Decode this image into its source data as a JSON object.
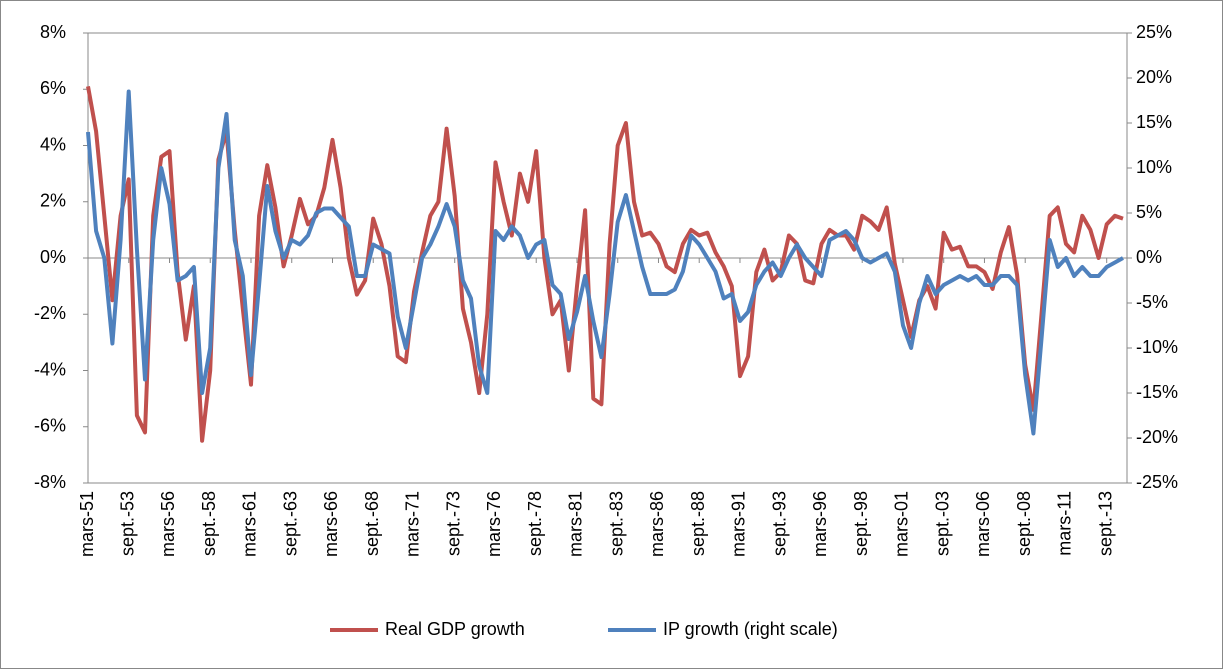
{
  "chart_data": {
    "type": "line",
    "categories": [
      "mars-51",
      null,
      null,
      null,
      null,
      "sept.-53",
      null,
      null,
      null,
      null,
      "mars-56",
      null,
      null,
      null,
      null,
      "sept.-58",
      null,
      null,
      null,
      null,
      "mars-61",
      null,
      null,
      null,
      null,
      "sept.-63",
      null,
      null,
      null,
      null,
      "mars-66",
      null,
      null,
      null,
      null,
      "sept.-68",
      null,
      null,
      null,
      null,
      "mars-71",
      null,
      null,
      null,
      null,
      "sept.-73",
      null,
      null,
      null,
      null,
      "mars-76",
      null,
      null,
      null,
      null,
      "sept.-78",
      null,
      null,
      null,
      null,
      "mars-81",
      null,
      null,
      null,
      null,
      "sept.-83",
      null,
      null,
      null,
      null,
      "mars-86",
      null,
      null,
      null,
      null,
      "sept.-88",
      null,
      null,
      null,
      null,
      "mars-91",
      null,
      null,
      null,
      null,
      "sept.-93",
      null,
      null,
      null,
      null,
      "mars-96",
      null,
      null,
      null,
      null,
      "sept.-98",
      null,
      null,
      null,
      null,
      "mars-01",
      null,
      null,
      null,
      null,
      "sept.-03",
      null,
      null,
      null,
      null,
      "mars-06",
      null,
      null,
      null,
      null,
      "sept.-08",
      null,
      null,
      null,
      null,
      "mars-11",
      null,
      null,
      null,
      null,
      "sept.-13",
      null,
      null
    ],
    "series": [
      {
        "name": "Real GDP growth",
        "color": "#c0504d",
        "values": [
          6.1,
          4.5,
          1.5,
          -1.5,
          1.5,
          2.8,
          -5.6,
          -6.2,
          1.5,
          3.6,
          3.8,
          -0.5,
          -2.9,
          -1.0,
          -6.5,
          -4.0,
          3.5,
          4.5,
          1.0,
          -1.8,
          -4.5,
          1.5,
          3.3,
          1.8,
          -0.3,
          0.8,
          2.1,
          1.2,
          1.5,
          2.5,
          4.2,
          2.5,
          0.0,
          -1.3,
          -0.8,
          1.4,
          0.5,
          -1.0,
          -3.5,
          -3.7,
          -1.2,
          0.2,
          1.5,
          2.0,
          4.6,
          2.2,
          -1.8,
          -3.0,
          -4.8,
          -2.0,
          3.4,
          2.0,
          0.8,
          3.0,
          2.0,
          3.8,
          0.0,
          -2.0,
          -1.5,
          -4.0,
          -1.0,
          1.7,
          -5.0,
          -5.2,
          0.5,
          4.0,
          4.8,
          2.0,
          0.8,
          0.9,
          0.5,
          -0.3,
          -0.5,
          0.5,
          1.0,
          0.8,
          0.9,
          0.2,
          -0.3,
          -1.0,
          -4.2,
          -3.5,
          -0.5,
          0.3,
          -0.8,
          -0.5,
          0.8,
          0.5,
          -0.8,
          -0.9,
          0.5,
          1.0,
          0.8,
          0.8,
          0.3,
          1.5,
          1.3,
          1.0,
          1.8,
          -0.2,
          -1.5,
          -2.8,
          -1.5,
          -1.0,
          -1.8,
          0.9,
          0.3,
          0.4,
          -0.3,
          -0.3,
          -0.5,
          -1.1,
          0.2,
          1.1,
          -0.6,
          -3.8,
          -5.4,
          -2.0,
          1.5,
          1.8,
          0.5,
          0.2,
          1.5,
          1.0,
          0.0,
          1.2,
          1.5,
          1.4
        ]
      },
      {
        "name": "IP growth (right scale)",
        "color": "#4f81bd",
        "axis": "y2",
        "values": [
          14,
          3,
          0,
          -9.5,
          2,
          18.5,
          1,
          -13.5,
          2,
          10,
          6,
          -2.5,
          -2,
          -1,
          -15,
          -10,
          10,
          16,
          2,
          -2,
          -13,
          -3,
          8,
          3,
          0,
          2,
          1.5,
          2.5,
          5,
          5.5,
          5.5,
          4.5,
          3.5,
          -2,
          -2,
          1.5,
          1,
          0.5,
          -6.5,
          -10,
          -5,
          0,
          1.5,
          3.5,
          6,
          3.5,
          -2.5,
          -4.5,
          -12,
          -15,
          3,
          2,
          3.5,
          2.5,
          0,
          1.5,
          2,
          -3,
          -4,
          -9,
          -6,
          -2,
          -7,
          -11,
          -4,
          4,
          7,
          3,
          -1,
          -4,
          -4,
          -4,
          -3.5,
          -1.5,
          2.5,
          1.5,
          0,
          -1.5,
          -4.5,
          -4,
          -7,
          -6,
          -3,
          -1.5,
          -0.5,
          -2,
          0,
          1.5,
          0,
          -1,
          -2,
          2,
          2.5,
          3,
          2,
          0,
          -0.5,
          0,
          0.5,
          -1.5,
          -7.5,
          -10,
          -5,
          -2,
          -4,
          -3,
          -2.5,
          -2,
          -2.5,
          -2,
          -3,
          -3,
          -2,
          -2,
          -3,
          -13,
          -19.5,
          -9,
          2,
          -1,
          0,
          -2,
          -1,
          -2,
          -2,
          -1,
          -0.5,
          0
        ]
      }
    ],
    "ylim": [
      -8,
      8
    ],
    "yticks": [
      {
        "value": -8,
        "label": "-8%"
      },
      {
        "value": -6,
        "label": "-6%"
      },
      {
        "value": -4,
        "label": "-4%"
      },
      {
        "value": -2,
        "label": "-2%"
      },
      {
        "value": 0,
        "label": "0%"
      },
      {
        "value": 2,
        "label": "2%"
      },
      {
        "value": 4,
        "label": "4%"
      },
      {
        "value": 6,
        "label": "6%"
      },
      {
        "value": 8,
        "label": "8%"
      }
    ],
    "y2lim": [
      -25,
      25
    ],
    "y2ticks": [
      {
        "value": -25,
        "label": "-25%"
      },
      {
        "value": -20,
        "label": "-20%"
      },
      {
        "value": -15,
        "label": "-15%"
      },
      {
        "value": -10,
        "label": "-10%"
      },
      {
        "value": -5,
        "label": "-5%"
      },
      {
        "value": 0,
        "label": "0%"
      },
      {
        "value": 5,
        "label": "5%"
      },
      {
        "value": 10,
        "label": "10%"
      },
      {
        "value": 15,
        "label": "15%"
      },
      {
        "value": 20,
        "label": "20%"
      },
      {
        "value": 25,
        "label": "25%"
      }
    ],
    "legend": "bottom",
    "grid": false
  }
}
